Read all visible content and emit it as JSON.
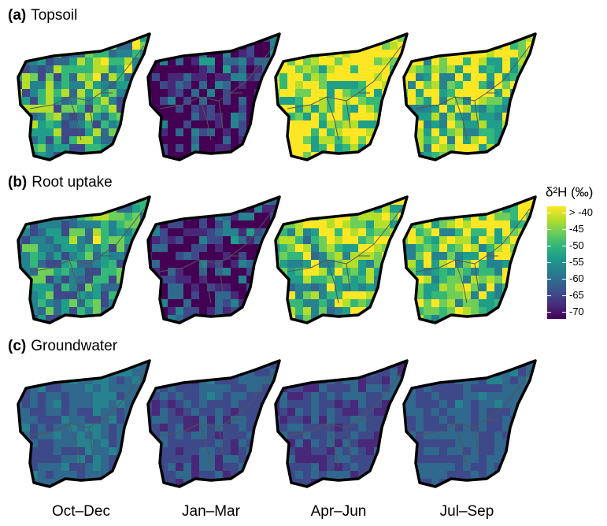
{
  "panels": [
    {
      "tag": "(a)",
      "title": "Topsoil"
    },
    {
      "tag": "(b)",
      "title": "Root uptake"
    },
    {
      "tag": "(c)",
      "title": "Groundwater"
    }
  ],
  "columns": [
    "Oct–Dec",
    "Jan–Mar",
    "Apr–Jun",
    "Jul–Sep"
  ],
  "colorbar": {
    "title": "δ²H (‰)",
    "clim": [
      -72,
      -38
    ],
    "ticks": [
      {
        "value": -40,
        "label": "> -40"
      },
      -45,
      -50,
      -55,
      -60,
      -65,
      -70
    ]
  }
}
